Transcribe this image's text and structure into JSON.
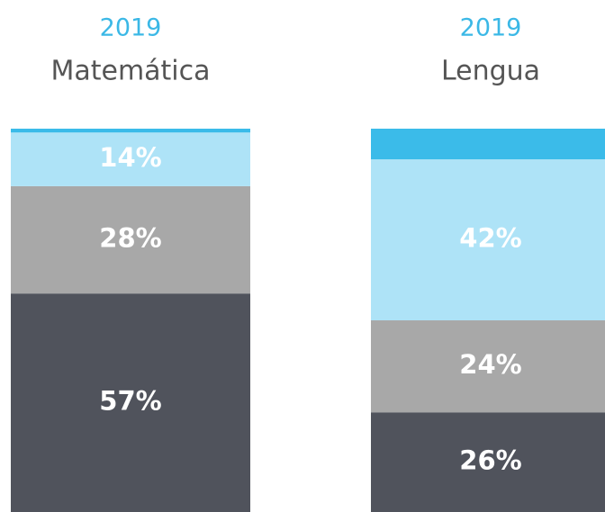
{
  "chart_data": {
    "type": "stacked-bar",
    "categories": [
      "Matemática",
      "Lengua"
    ],
    "subtitles": [
      "2019",
      "2019"
    ],
    "ylim": [
      0,
      100
    ],
    "series": [
      {
        "color": "#50535c",
        "values": [
          57,
          26
        ],
        "value_labels": [
          "57%",
          "26%"
        ]
      },
      {
        "color": "#a8a8a8",
        "values": [
          28,
          24
        ],
        "value_labels": [
          "28%",
          "24%"
        ]
      },
      {
        "color": "#aee3f7",
        "values": [
          14,
          42
        ],
        "value_labels": [
          "14%",
          "42%"
        ]
      },
      {
        "color": "#3bbbe9",
        "values": [
          1,
          8
        ],
        "value_labels": [
          null,
          null
        ]
      }
    ]
  }
}
